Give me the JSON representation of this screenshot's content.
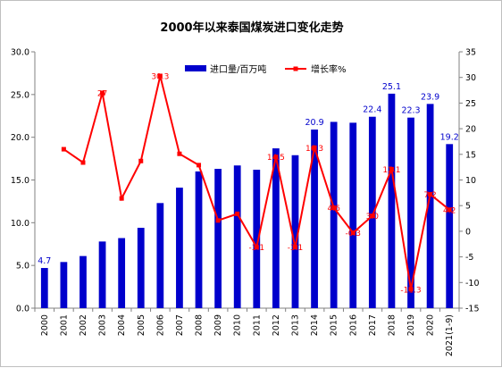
{
  "chart_data": {
    "type": "bar+line",
    "title": "2000年以来泰国煤炭进口变化走势",
    "categories": [
      "2000",
      "2001",
      "2002",
      "2003",
      "2004",
      "2005",
      "2006",
      "2007",
      "2008",
      "2009",
      "2010",
      "2011",
      "2012",
      "2013",
      "2014",
      "2015",
      "2016",
      "2017",
      "2018",
      "2019",
      "2020",
      "2021(1-9)"
    ],
    "series": [
      {
        "name": "进口量/百万吨",
        "type": "bar",
        "axis": "left",
        "color": "#0000cc",
        "values": [
          4.7,
          5.4,
          6.1,
          7.8,
          8.2,
          9.4,
          12.3,
          14.1,
          16.0,
          16.3,
          16.7,
          16.2,
          18.7,
          17.9,
          20.9,
          21.8,
          21.7,
          22.4,
          25.1,
          22.3,
          23.9,
          19.2
        ],
        "data_labels": {
          "0": "4.7",
          "14": "20.9",
          "17": "22.4",
          "18": "25.1",
          "19": "22.3",
          "20": "23.9",
          "21": "19.2"
        }
      },
      {
        "name": "增长率%",
        "type": "line",
        "axis": "right",
        "color": "#ff0000",
        "values": [
          null,
          16.0,
          13.4,
          27.0,
          6.4,
          13.7,
          30.3,
          15.1,
          12.9,
          2.1,
          3.4,
          -3.1,
          14.5,
          -3.1,
          16.3,
          4.6,
          -0.3,
          3.0,
          12.1,
          -11.3,
          7.2,
          4.2
        ],
        "data_labels": {
          "3": "27",
          "6": "30.3",
          "12": "14.5",
          "11": "-3.1",
          "13": "-3.1",
          "14": "16.3",
          "15": "4.6",
          "16": "-0.3",
          "17": "3.0",
          "18": "12.1",
          "19": "-11.3",
          "20": "7.2",
          "21": "4.2"
        }
      }
    ],
    "y_left": {
      "min": 0,
      "max": 30,
      "step": 5,
      "tick_labels": [
        "0.0",
        "5.0",
        "10.0",
        "15.0",
        "20.0",
        "25.0",
        "30.0"
      ]
    },
    "y_right": {
      "min": -15,
      "max": 35,
      "step": 5,
      "tick_labels": [
        "-15",
        "-10",
        "-5",
        "0",
        "5",
        "10",
        "15",
        "20",
        "25",
        "30",
        "35"
      ]
    },
    "legend_position": "top-right",
    "grid": false
  }
}
